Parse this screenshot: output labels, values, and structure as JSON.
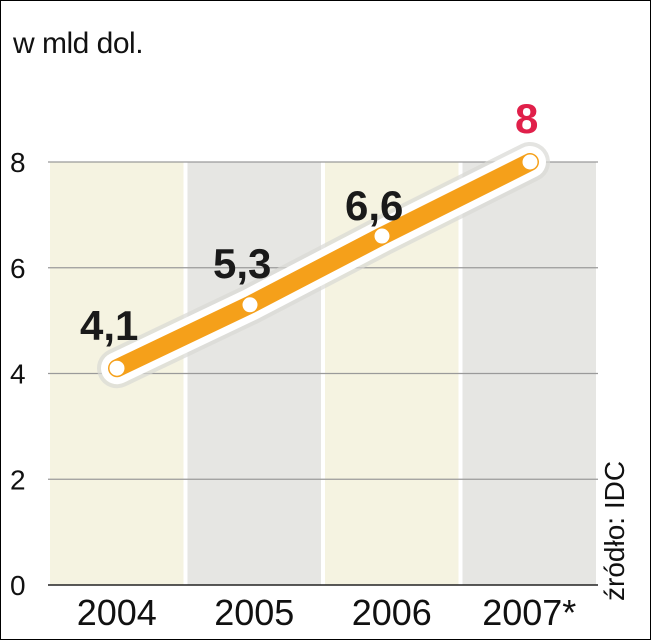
{
  "unit_label": "w mld dol.",
  "source": "źródło: IDC",
  "chart_data": {
    "type": "line",
    "categories": [
      "2004",
      "2005",
      "2006",
      "2007*"
    ],
    "values": [
      4.1,
      5.3,
      6.6,
      8
    ],
    "data_labels": [
      "4,1",
      "5,3",
      "6,6",
      "8"
    ],
    "yticks": [
      "0",
      "2",
      "4",
      "6",
      "8"
    ],
    "ylim": [
      0,
      8
    ],
    "grid": true,
    "colors": {
      "line": "#f5a01a",
      "halo": "#ffffff",
      "highlight_label": "#e0204a",
      "bar_light": "#f5f3e1",
      "bar_gray": "#e6e6e3",
      "grid": "#9a9a9a"
    }
  }
}
